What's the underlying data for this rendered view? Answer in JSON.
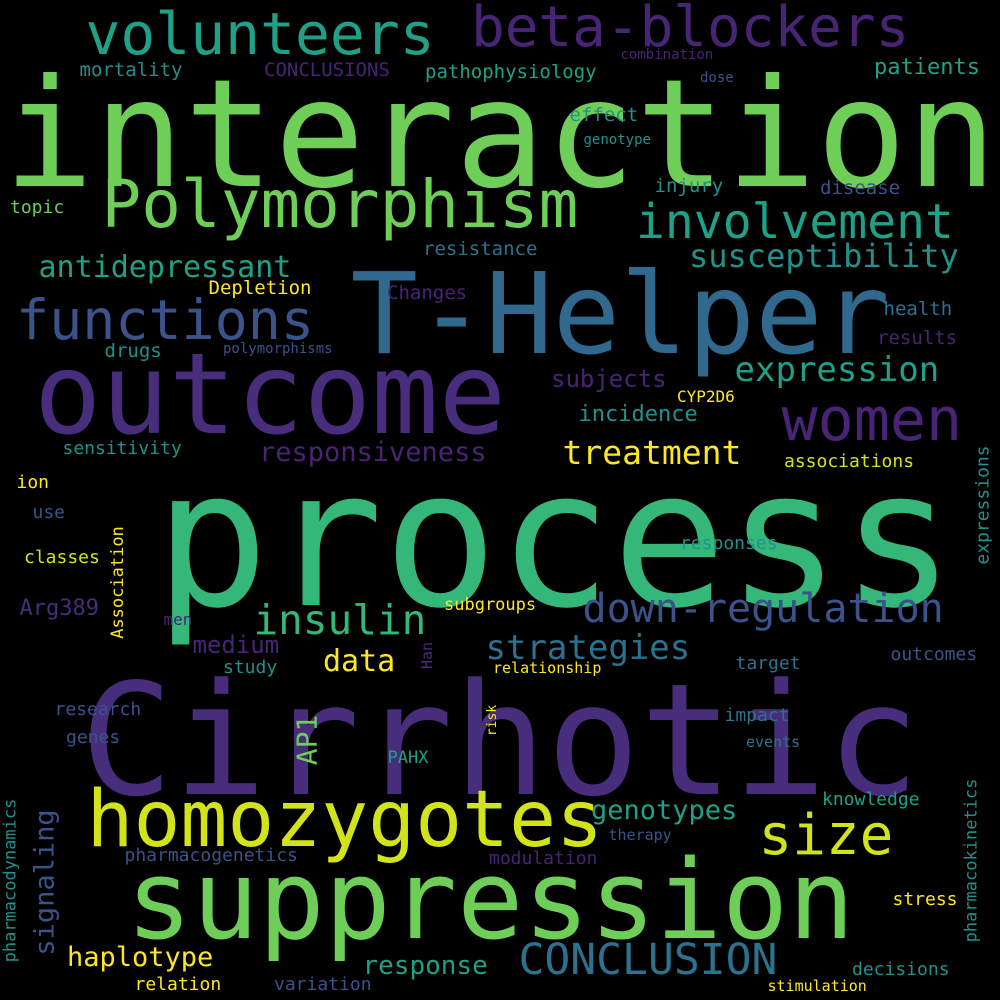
{
  "palette": {
    "dark_purple": "#472d7b",
    "purple": "#482475",
    "indigo": "#3b528b",
    "blue": "#31688e",
    "teal_blue": "#2c728e",
    "teal": "#21918c",
    "sea_green": "#1fa187",
    "green": "#35b779",
    "light_green": "#6ece58",
    "lime": "#b5de2b",
    "yellow_green": "#d2e21b",
    "yellow": "#fde725"
  },
  "words": [
    {
      "text": "interaction",
      "color": "light_green"
    },
    {
      "text": "process",
      "color": "green"
    },
    {
      "text": "Cirrhotic",
      "color": "dark_purple"
    },
    {
      "text": "T-Helper",
      "color": "blue"
    },
    {
      "text": "outcome",
      "color": "dark_purple"
    },
    {
      "text": "suppression",
      "color": "light_green"
    },
    {
      "text": "homozygotes",
      "color": "yellow_green"
    },
    {
      "text": "Polymorphism",
      "color": "light_green"
    },
    {
      "text": "volunteers",
      "color": "sea_green"
    },
    {
      "text": "beta-blockers",
      "color": "purple"
    },
    {
      "text": "involvement",
      "color": "sea_green"
    },
    {
      "text": "women",
      "color": "purple"
    },
    {
      "text": "functions",
      "color": "indigo"
    },
    {
      "text": "size",
      "color": "yellow_green"
    },
    {
      "text": "down-regulation",
      "color": "indigo"
    },
    {
      "text": "CONCLUSION",
      "color": "teal_blue"
    },
    {
      "text": "insulin",
      "color": "green"
    },
    {
      "text": "antidepressant",
      "color": "sea_green"
    },
    {
      "text": "susceptibility",
      "color": "teal"
    },
    {
      "text": "expression",
      "color": "sea_green"
    },
    {
      "text": "strategies",
      "color": "teal_blue"
    },
    {
      "text": "treatment",
      "color": "yellow"
    },
    {
      "text": "responsiveness",
      "color": "purple"
    },
    {
      "text": "haplotype",
      "color": "yellow"
    },
    {
      "text": "genotypes",
      "color": "sea_green"
    },
    {
      "text": "data",
      "color": "yellow"
    },
    {
      "text": "AP1",
      "color": "light_green"
    },
    {
      "text": "signaling",
      "color": "indigo"
    },
    {
      "text": "response",
      "color": "sea_green"
    },
    {
      "text": "medium",
      "color": "purple"
    },
    {
      "text": "subjects",
      "color": "purple"
    },
    {
      "text": "incidence",
      "color": "teal"
    },
    {
      "text": "patients",
      "color": "sea_green"
    },
    {
      "text": "pathophysiology",
      "color": "sea_green"
    },
    {
      "text": "mortality",
      "color": "teal"
    },
    {
      "text": "CONCLUSIONS",
      "color": "purple"
    },
    {
      "text": "Arg389",
      "color": "dark_purple"
    },
    {
      "text": "effect",
      "color": "teal"
    },
    {
      "text": "injury",
      "color": "teal"
    },
    {
      "text": "disease",
      "color": "indigo"
    },
    {
      "text": "resistance",
      "color": "teal_blue"
    },
    {
      "text": "Depletion",
      "color": "yellow"
    },
    {
      "text": "Changes",
      "color": "purple"
    },
    {
      "text": "health",
      "color": "teal_blue"
    },
    {
      "text": "results",
      "color": "purple"
    },
    {
      "text": "drugs",
      "color": "teal"
    },
    {
      "text": "CYP2D6",
      "color": "yellow"
    },
    {
      "text": "sensitivity",
      "color": "teal"
    },
    {
      "text": "associations",
      "color": "yellow_green"
    },
    {
      "text": "ion",
      "color": "yellow"
    },
    {
      "text": "use",
      "color": "indigo"
    },
    {
      "text": "classes",
      "color": "yellow_green"
    },
    {
      "text": "responses",
      "color": "teal"
    },
    {
      "text": "subgroups",
      "color": "yellow"
    },
    {
      "text": "men",
      "color": "purple"
    },
    {
      "text": "study",
      "color": "teal"
    },
    {
      "text": "target",
      "color": "teal_blue"
    },
    {
      "text": "outcomes",
      "color": "indigo"
    },
    {
      "text": "relationship",
      "color": "yellow"
    },
    {
      "text": "research",
      "color": "indigo"
    },
    {
      "text": "genes",
      "color": "indigo"
    },
    {
      "text": "impact",
      "color": "teal_blue"
    },
    {
      "text": "events",
      "color": "teal_blue"
    },
    {
      "text": "PAHX",
      "color": "sea_green"
    },
    {
      "text": "knowledge",
      "color": "sea_green"
    },
    {
      "text": "therapy",
      "color": "indigo"
    },
    {
      "text": "pharmacogenetics",
      "color": "indigo"
    },
    {
      "text": "modulation",
      "color": "purple"
    },
    {
      "text": "stress",
      "color": "yellow"
    },
    {
      "text": "relation",
      "color": "yellow"
    },
    {
      "text": "variation",
      "color": "indigo"
    },
    {
      "text": "decisions",
      "color": "teal"
    },
    {
      "text": "stimulation",
      "color": "yellow"
    },
    {
      "text": "topic",
      "color": "light_green"
    },
    {
      "text": "combination",
      "color": "purple"
    },
    {
      "text": "dose",
      "color": "indigo"
    },
    {
      "text": "genotype",
      "color": "teal"
    },
    {
      "text": "polymorphisms",
      "color": "indigo"
    },
    {
      "text": "pharmacodynamics",
      "color": "teal"
    },
    {
      "text": "pharmacokinetics",
      "color": "teal"
    },
    {
      "text": "expressions",
      "color": "teal"
    },
    {
      "text": "Association",
      "color": "yellow"
    },
    {
      "text": "Han",
      "color": "dark_purple"
    },
    {
      "text": "risk",
      "color": "yellow"
    }
  ]
}
